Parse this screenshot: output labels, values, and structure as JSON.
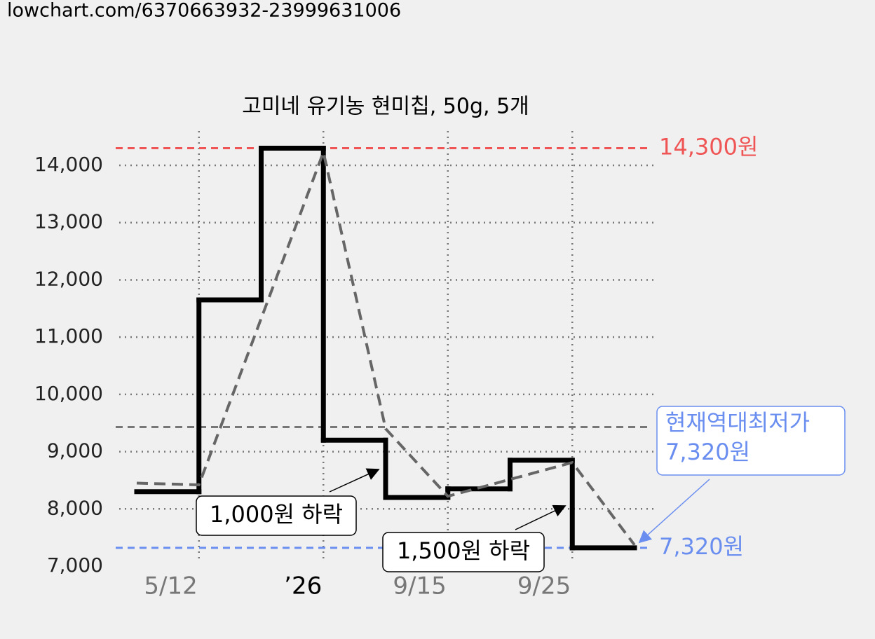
{
  "url": "lowchart.com/6370663932-23999631006",
  "chart_data": {
    "type": "step-line",
    "title": "고미네 유기농 현미칩, 50g, 5개",
    "xlim": [
      0,
      8
    ],
    "xticks": [
      {
        "value": 1,
        "label": "5/12"
      },
      {
        "value": 3,
        "label": "’26"
      },
      {
        "value": 5,
        "label": "9/15"
      },
      {
        "value": 7,
        "label": "9/25"
      }
    ],
    "ylim": [
      7000,
      14600
    ],
    "yticks": [
      {
        "value": 7000,
        "label": "7,000"
      },
      {
        "value": 8000,
        "label": "8,000"
      },
      {
        "value": 9000,
        "label": "9,000"
      },
      {
        "value": 10000,
        "label": "10,000"
      },
      {
        "value": 11000,
        "label": "11,000"
      },
      {
        "value": 12000,
        "label": "12,000"
      },
      {
        "value": 13000,
        "label": "13,000"
      },
      {
        "value": 14000,
        "label": "14,000"
      }
    ],
    "grid": true,
    "series": [
      {
        "style": "step",
        "color": "#000000",
        "x": [
          0,
          1,
          2,
          3,
          4,
          5,
          6,
          7
        ],
        "values": [
          8300,
          11650,
          14300,
          9200,
          8200,
          8350,
          8850,
          7320
        ]
      },
      {
        "style": "dashed",
        "color": "#666666",
        "x": [
          0,
          1,
          3,
          4,
          5,
          7,
          8
        ],
        "values": [
          8450,
          8420,
          14230,
          9400,
          8220,
          8810,
          7370
        ]
      }
    ],
    "reference_lines": [
      {
        "value": 14300,
        "label": "14,300원",
        "color": "#f05555"
      },
      {
        "value": 7320,
        "label": "7,320원",
        "color": "#6a8ef0"
      },
      {
        "value": 9430,
        "color": "#777777"
      }
    ],
    "annotations": [
      {
        "lines": [
          "현재역대최저가",
          "7,320원"
        ],
        "color": "#6a8ef0"
      },
      {
        "lines": [
          "1,000원 하락"
        ],
        "color": "#000000"
      },
      {
        "lines": [
          "1,500원 하락"
        ],
        "color": "#000000"
      }
    ]
  }
}
